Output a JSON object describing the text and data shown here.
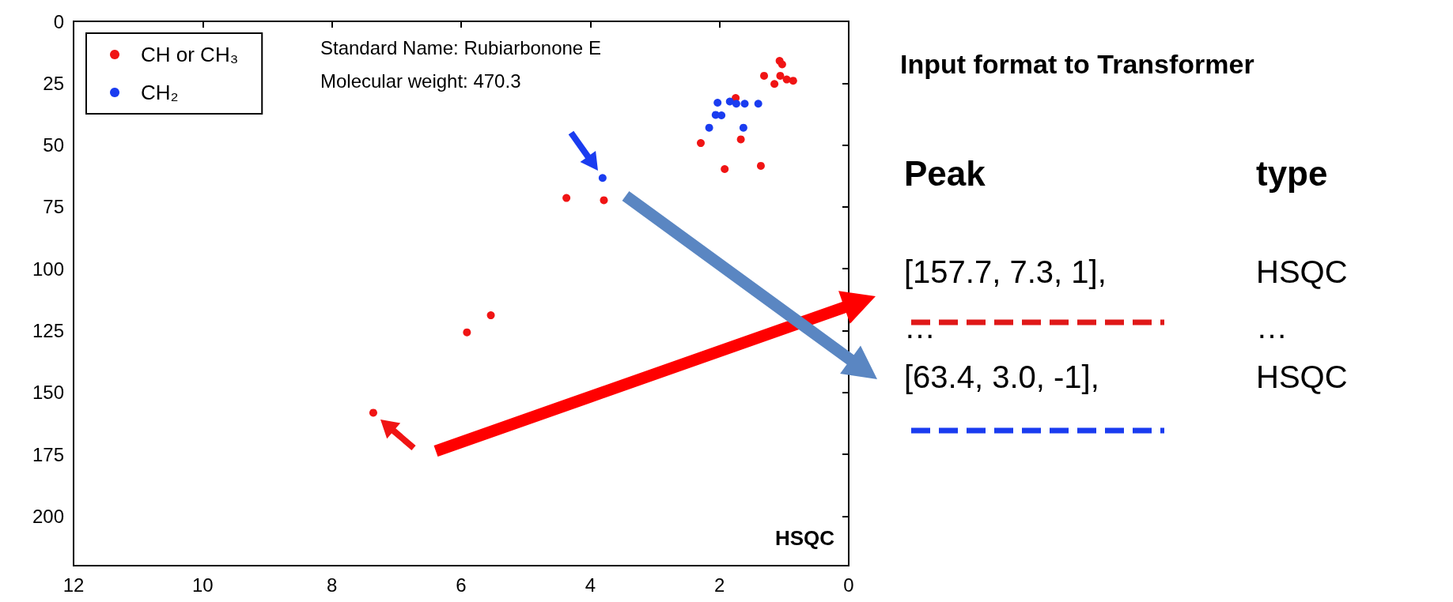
{
  "chart_data": [
    {
      "type": "scatter",
      "xlim": [
        12,
        0
      ],
      "ylim": [
        220,
        0
      ],
      "xticks": [
        12,
        10,
        8,
        6,
        4,
        2,
        0
      ],
      "yticks": [
        0,
        25,
        50,
        75,
        100,
        125,
        150,
        175,
        200
      ],
      "grid": false,
      "legend": "top left",
      "marker": "circle",
      "annotations": [
        "Standard Name: Rubiarbonone E",
        "Molecular weight: 470.3",
        "HSQC"
      ],
      "series": [
        {
          "name": "CH or CH₃",
          "color": "#f01414",
          "x": [
            1.07,
            1.03,
            1.31,
            1.06,
            0.96,
            0.86,
            1.15,
            1.75,
            1.67,
            2.29,
            1.92,
            1.36,
            4.37,
            3.79,
            5.54,
            5.91,
            7.36
          ],
          "values": [
            16,
            17.4,
            22,
            22,
            23.5,
            24,
            25.3,
            31,
            47.7,
            49.2,
            59.7,
            58.4,
            71.4,
            72.3,
            118.8,
            125.7,
            158.2
          ]
        },
        {
          "name": "CH₂",
          "color": "#1a3cf0",
          "x": [
            3.81,
            2.03,
            1.84,
            1.74,
            1.61,
            1.4,
            2.06,
            1.97,
            2.16,
            1.63
          ],
          "values": [
            63.3,
            32.9,
            32.4,
            33.3,
            33.3,
            33.3,
            37.8,
            38,
            43,
            43
          ]
        }
      ]
    },
    {
      "type": "other",
      "title": "Input format to Transformer",
      "annotations": [
        "Peak",
        "type",
        "[157.7, 7.3, 1],",
        "HSQC",
        "…",
        "…",
        "[63.4, 3.0, -1],",
        "HSQC"
      ]
    }
  ]
}
